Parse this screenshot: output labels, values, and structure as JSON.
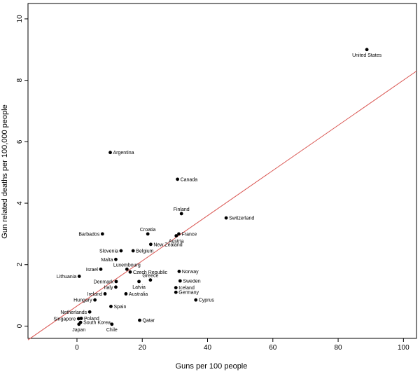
{
  "chart_data": {
    "type": "scatter",
    "title": "",
    "xlabel": "Guns per 100 people",
    "ylabel": "Gun related deaths per 100,000 people",
    "xlim": [
      -15,
      104
    ],
    "ylim": [
      -0.4,
      10.5
    ],
    "xticks": [
      0,
      20,
      40,
      60,
      80,
      100
    ],
    "yticks": [
      0,
      2,
      4,
      6,
      8,
      10
    ],
    "grid": false,
    "trendline": {
      "color": "#d9534f",
      "x": [
        -15,
        104
      ],
      "y": [
        -0.45,
        8.3
      ]
    },
    "points": [
      {
        "label": "United States",
        "x": 88.8,
        "y": 9.0,
        "label_pos": "below"
      },
      {
        "label": "Argentina",
        "x": 10.2,
        "y": 5.65,
        "label_pos": "right"
      },
      {
        "label": "Canada",
        "x": 30.8,
        "y": 4.78,
        "label_pos": "right"
      },
      {
        "label": "Finland",
        "x": 32.0,
        "y": 3.66,
        "label_pos": "above"
      },
      {
        "label": "Switzerland",
        "x": 45.7,
        "y": 3.52,
        "label_pos": "right"
      },
      {
        "label": "Barbados",
        "x": 7.8,
        "y": 3.0,
        "label_pos": "left"
      },
      {
        "label": "Croatia",
        "x": 21.7,
        "y": 3.0,
        "label_pos": "above"
      },
      {
        "label": "France",
        "x": 31.2,
        "y": 3.0,
        "label_pos": "right"
      },
      {
        "label": "Austria",
        "x": 30.4,
        "y": 2.94,
        "label_pos": "below"
      },
      {
        "label": "New Zealand",
        "x": 22.6,
        "y": 2.66,
        "label_pos": "right"
      },
      {
        "label": "Slovenia",
        "x": 13.5,
        "y": 2.45,
        "label_pos": "left"
      },
      {
        "label": "Belgium",
        "x": 17.2,
        "y": 2.45,
        "label_pos": "right"
      },
      {
        "label": "Malta",
        "x": 11.9,
        "y": 2.17,
        "label_pos": "left"
      },
      {
        "label": "Luxembourg",
        "x": 15.3,
        "y": 1.85,
        "label_pos": "above"
      },
      {
        "label": "Israel",
        "x": 7.3,
        "y": 1.85,
        "label_pos": "left"
      },
      {
        "label": "Czech Republic",
        "x": 16.3,
        "y": 1.76,
        "label_pos": "right"
      },
      {
        "label": "Norway",
        "x": 31.3,
        "y": 1.78,
        "label_pos": "right"
      },
      {
        "label": "Lithuania",
        "x": 0.7,
        "y": 1.62,
        "label_pos": "left"
      },
      {
        "label": "Greece",
        "x": 22.5,
        "y": 1.5,
        "label_pos": "above"
      },
      {
        "label": "Denmark",
        "x": 12.0,
        "y": 1.45,
        "label_pos": "left"
      },
      {
        "label": "Sweden",
        "x": 31.6,
        "y": 1.47,
        "label_pos": "right"
      },
      {
        "label": "Latvia",
        "x": 19.0,
        "y": 1.45,
        "label_pos": "below"
      },
      {
        "label": "Italy",
        "x": 11.9,
        "y": 1.27,
        "label_pos": "left"
      },
      {
        "label": "Iceland",
        "x": 30.3,
        "y": 1.25,
        "label_pos": "right"
      },
      {
        "label": "Ireland",
        "x": 8.6,
        "y": 1.05,
        "label_pos": "left"
      },
      {
        "label": "Australia",
        "x": 15.0,
        "y": 1.05,
        "label_pos": "right"
      },
      {
        "label": "Germany",
        "x": 30.3,
        "y": 1.1,
        "label_pos": "right"
      },
      {
        "label": "Hungary",
        "x": 5.5,
        "y": 0.85,
        "label_pos": "left"
      },
      {
        "label": "Cyprus",
        "x": 36.4,
        "y": 0.85,
        "label_pos": "right"
      },
      {
        "label": "Spain",
        "x": 10.4,
        "y": 0.64,
        "label_pos": "right"
      },
      {
        "label": "Netherlands",
        "x": 3.9,
        "y": 0.46,
        "label_pos": "left"
      },
      {
        "label": "Singapore",
        "x": 0.5,
        "y": 0.24,
        "label_pos": "left"
      },
      {
        "label": "Poland",
        "x": 1.3,
        "y": 0.25,
        "label_pos": "right"
      },
      {
        "label": "Qatar",
        "x": 19.2,
        "y": 0.19,
        "label_pos": "right"
      },
      {
        "label": "South Korea",
        "x": 1.1,
        "y": 0.12,
        "label_pos": "right"
      },
      {
        "label": "Japan",
        "x": 0.6,
        "y": 0.06,
        "label_pos": "below"
      },
      {
        "label": "Chile",
        "x": 10.7,
        "y": 0.06,
        "label_pos": "below"
      }
    ]
  }
}
